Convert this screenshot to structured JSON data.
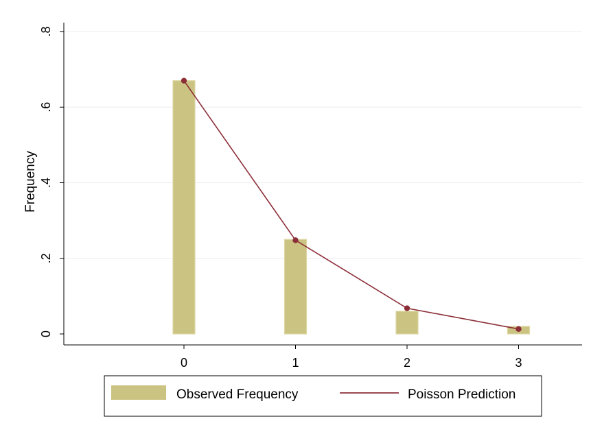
{
  "chart_data": {
    "type": "bar",
    "categories": [
      "0",
      "1",
      "2",
      "3"
    ],
    "x": [
      0,
      1,
      2,
      3
    ],
    "xticks": [
      "0",
      "1",
      "2",
      "3"
    ],
    "xlim": [
      -1,
      3.5
    ],
    "ylim": [
      0,
      0.8
    ],
    "yticks": [
      0,
      0.2,
      0.4,
      0.6,
      0.8
    ],
    "ytick_labels": [
      "0",
      ".2",
      ".4",
      ".6",
      ".8"
    ],
    "ylabel": "Frequency",
    "xlabel": "",
    "grid": true,
    "legend_position": "bottom",
    "series": [
      {
        "name": "Observed Frequency",
        "type": "bar",
        "values": [
          0.67,
          0.25,
          0.06,
          0.02
        ],
        "color": "#cbc382",
        "edge_color": "#ddd7a3"
      },
      {
        "name": "Poisson Prediction",
        "type": "line",
        "values": [
          0.67,
          0.248,
          0.068,
          0.013
        ],
        "color": "#8c2e38"
      }
    ]
  }
}
